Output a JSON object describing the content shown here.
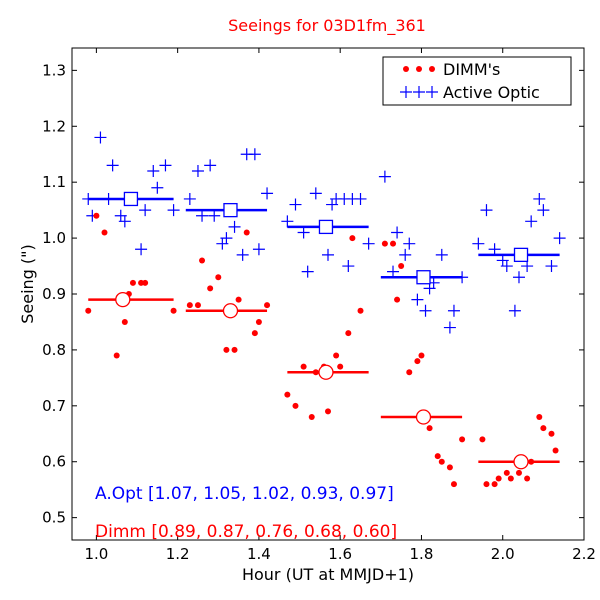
{
  "chart_data": {
    "type": "scatter",
    "title": "Seeings for 03D1fm_361",
    "xlabel": "Hour (UT at MMJD+1)",
    "ylabel": "Seeing (\")",
    "xlim": [
      0.94,
      2.2
    ],
    "ylim": [
      0.46,
      1.34
    ],
    "xticks": [
      1.0,
      1.2,
      1.4,
      1.6,
      1.8,
      2.0,
      2.2
    ],
    "xtick_labels": [
      "1.0",
      "1.2",
      "1.4",
      "1.6",
      "1.8",
      "2.0",
      "2.2"
    ],
    "yticks": [
      0.5,
      0.6,
      0.7,
      0.8,
      0.9,
      1.0,
      1.1,
      1.2,
      1.3
    ],
    "ytick_labels": [
      "0.5",
      "0.6",
      "0.7",
      "0.8",
      "0.9",
      "1.0",
      "1.1",
      "1.2",
      "1.3"
    ],
    "legend": {
      "position": "top-right",
      "entries": [
        {
          "label": "DIMM's",
          "marker": "dot",
          "color": "#ff0000"
        },
        {
          "label": "Active Optic",
          "marker": "plus",
          "color": "#0000ff"
        }
      ]
    },
    "series": [
      {
        "name": "Active Optic",
        "color": "#0000ff",
        "marker": "plus",
        "points": [
          [
            0.98,
            1.07
          ],
          [
            0.99,
            1.04
          ],
          [
            1.01,
            1.18
          ],
          [
            1.03,
            1.07
          ],
          [
            1.04,
            1.13
          ],
          [
            1.06,
            1.04
          ],
          [
            1.07,
            1.03
          ],
          [
            1.09,
            1.07
          ],
          [
            1.11,
            0.98
          ],
          [
            1.12,
            1.05
          ],
          [
            1.14,
            1.12
          ],
          [
            1.15,
            1.09
          ],
          [
            1.17,
            1.13
          ],
          [
            1.19,
            1.05
          ],
          [
            1.23,
            1.07
          ],
          [
            1.25,
            1.12
          ],
          [
            1.26,
            1.04
          ],
          [
            1.28,
            1.13
          ],
          [
            1.29,
            1.04
          ],
          [
            1.31,
            0.99
          ],
          [
            1.32,
            1.0
          ],
          [
            1.34,
            1.02
          ],
          [
            1.36,
            0.97
          ],
          [
            1.37,
            1.15
          ],
          [
            1.39,
            1.15
          ],
          [
            1.4,
            0.98
          ],
          [
            1.42,
            1.08
          ],
          [
            1.47,
            1.03
          ],
          [
            1.49,
            1.06
          ],
          [
            1.51,
            1.01
          ],
          [
            1.52,
            0.94
          ],
          [
            1.54,
            1.08
          ],
          [
            1.55,
            1.02
          ],
          [
            1.57,
            0.97
          ],
          [
            1.58,
            1.06
          ],
          [
            1.59,
            1.07
          ],
          [
            1.61,
            1.07
          ],
          [
            1.62,
            0.95
          ],
          [
            1.63,
            1.07
          ],
          [
            1.65,
            1.07
          ],
          [
            1.67,
            0.99
          ],
          [
            1.71,
            1.11
          ],
          [
            1.73,
            0.94
          ],
          [
            1.74,
            1.01
          ],
          [
            1.76,
            0.97
          ],
          [
            1.77,
            0.99
          ],
          [
            1.79,
            0.89
          ],
          [
            1.81,
            0.87
          ],
          [
            1.82,
            0.91
          ],
          [
            1.83,
            0.92
          ],
          [
            1.85,
            0.97
          ],
          [
            1.87,
            0.84
          ],
          [
            1.88,
            0.87
          ],
          [
            1.9,
            0.93
          ],
          [
            1.94,
            0.99
          ],
          [
            1.96,
            1.05
          ],
          [
            1.98,
            0.98
          ],
          [
            2.0,
            0.96
          ],
          [
            2.01,
            0.95
          ],
          [
            2.03,
            0.87
          ],
          [
            2.04,
            0.93
          ],
          [
            2.06,
            0.95
          ],
          [
            2.07,
            1.03
          ],
          [
            2.09,
            1.07
          ],
          [
            2.1,
            1.05
          ],
          [
            2.12,
            0.95
          ],
          [
            2.14,
            1.0
          ]
        ]
      },
      {
        "name": "DIMM's",
        "color": "#ff0000",
        "marker": "dot",
        "points": [
          [
            0.98,
            0.87
          ],
          [
            1.0,
            1.04
          ],
          [
            1.02,
            1.01
          ],
          [
            1.05,
            0.79
          ],
          [
            1.07,
            0.85
          ],
          [
            1.08,
            0.9
          ],
          [
            1.09,
            0.92
          ],
          [
            1.11,
            0.92
          ],
          [
            1.12,
            0.92
          ],
          [
            1.19,
            0.87
          ],
          [
            1.23,
            0.88
          ],
          [
            1.25,
            0.88
          ],
          [
            1.26,
            0.96
          ],
          [
            1.28,
            0.91
          ],
          [
            1.3,
            0.93
          ],
          [
            1.32,
            0.8
          ],
          [
            1.34,
            0.8
          ],
          [
            1.35,
            0.89
          ],
          [
            1.37,
            1.01
          ],
          [
            1.39,
            0.83
          ],
          [
            1.4,
            0.85
          ],
          [
            1.42,
            0.88
          ],
          [
            1.47,
            0.72
          ],
          [
            1.49,
            0.7
          ],
          [
            1.51,
            0.77
          ],
          [
            1.53,
            0.68
          ],
          [
            1.54,
            0.76
          ],
          [
            1.56,
            0.77
          ],
          [
            1.57,
            0.69
          ],
          [
            1.59,
            0.79
          ],
          [
            1.6,
            0.77
          ],
          [
            1.62,
            0.83
          ],
          [
            1.63,
            1.0
          ],
          [
            1.65,
            0.87
          ],
          [
            1.71,
            0.99
          ],
          [
            1.73,
            0.99
          ],
          [
            1.74,
            0.89
          ],
          [
            1.75,
            0.95
          ],
          [
            1.77,
            0.76
          ],
          [
            1.79,
            0.78
          ],
          [
            1.8,
            0.79
          ],
          [
            1.82,
            0.66
          ],
          [
            1.84,
            0.61
          ],
          [
            1.85,
            0.6
          ],
          [
            1.87,
            0.59
          ],
          [
            1.88,
            0.56
          ],
          [
            1.9,
            0.64
          ],
          [
            1.95,
            0.64
          ],
          [
            1.96,
            0.56
          ],
          [
            1.98,
            0.56
          ],
          [
            1.99,
            0.57
          ],
          [
            2.01,
            0.58
          ],
          [
            2.02,
            0.57
          ],
          [
            2.04,
            0.58
          ],
          [
            2.06,
            0.57
          ],
          [
            2.07,
            0.6
          ],
          [
            2.09,
            0.68
          ],
          [
            2.1,
            0.66
          ],
          [
            2.12,
            0.65
          ],
          [
            2.13,
            0.62
          ]
        ]
      }
    ],
    "binned_means": [
      {
        "name": "A.Opt",
        "color": "#0000ff",
        "marker": "square",
        "bins": [
          [
            0.98,
            1.19
          ],
          [
            1.22,
            1.42
          ],
          [
            1.47,
            1.67
          ],
          [
            1.7,
            1.9
          ],
          [
            1.94,
            2.14
          ]
        ],
        "centers": [
          1.085,
          1.33,
          1.565,
          1.805,
          2.045
        ],
        "values": [
          1.07,
          1.05,
          1.02,
          0.93,
          0.97
        ]
      },
      {
        "name": "Dimm",
        "color": "#ff0000",
        "marker": "circle",
        "bins": [
          [
            0.98,
            1.19
          ],
          [
            1.22,
            1.42
          ],
          [
            1.47,
            1.67
          ],
          [
            1.7,
            1.9
          ],
          [
            1.94,
            2.14
          ]
        ],
        "centers": [
          1.065,
          1.33,
          1.565,
          1.805,
          2.045
        ],
        "values": [
          0.89,
          0.87,
          0.76,
          0.68,
          0.6
        ]
      }
    ],
    "annotations": [
      {
        "text": "A.Opt [1.07, 1.05, 1.02, 0.93, 0.97]",
        "color": "#0000ff"
      },
      {
        "text": "Dimm [0.89, 0.87, 0.76, 0.68, 0.60]",
        "color": "#ff0000"
      }
    ]
  }
}
